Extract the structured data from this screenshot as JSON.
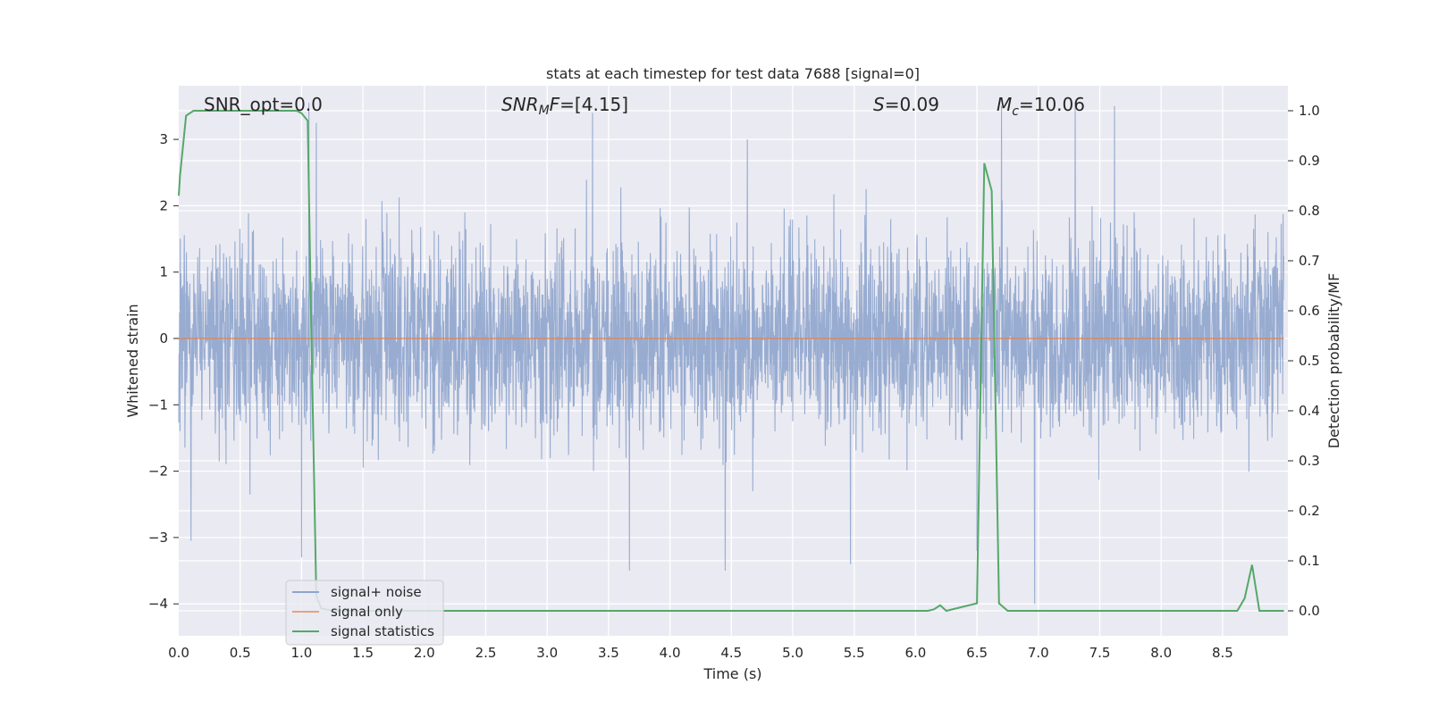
{
  "chart_data": {
    "type": "line",
    "title": "stats at each timestep for test data 7688 [signal=0]",
    "xlabel": "Time (s)",
    "ylabel_left": "Whitened strain",
    "ylabel_right": "Detection probability/MF",
    "xlim": [
      0.0,
      9.0
    ],
    "ylim_left": [
      -4.35,
      3.9
    ],
    "ylim_right": [
      -0.05,
      1.05
    ],
    "xticks": [
      "0.0",
      "0.5",
      "1.0",
      "1.5",
      "2.0",
      "2.5",
      "3.0",
      "3.5",
      "4.0",
      "4.5",
      "5.0",
      "5.5",
      "6.0",
      "6.5",
      "7.0",
      "7.5",
      "8.0",
      "8.5"
    ],
    "yticks_left": [
      "3",
      "2",
      "1",
      "0",
      "−1",
      "−2",
      "−3",
      "−4"
    ],
    "yticks_right": [
      "1.0",
      "0.9",
      "0.8",
      "0.7",
      "0.6",
      "0.5",
      "0.4",
      "0.3",
      "0.2",
      "0.1",
      "0.0"
    ],
    "grid": true,
    "legend_placement": "lower-left",
    "annotations": {
      "snr_opt": "SNR_opt=0.0",
      "snr_mf": "=[4.15]",
      "s_stat": "=0.09",
      "mc": "=10.06"
    },
    "series": [
      {
        "name": "signal+ noise",
        "axis": "left",
        "color": "#8fa5cd",
        "description_values": "Gaussian whitened noise, approx. range -3.5 to 3.5",
        "extremes": [
          {
            "x": 1.06,
            "y": 3.55
          },
          {
            "x": 1.12,
            "y": 3.25
          },
          {
            "x": 3.37,
            "y": 3.4
          },
          {
            "x": 4.63,
            "y": 3.0
          },
          {
            "x": 6.7,
            "y": 3.5
          },
          {
            "x": 7.3,
            "y": 3.5
          },
          {
            "x": 7.62,
            "y": 3.5
          },
          {
            "x": 3.67,
            "y": -3.5
          },
          {
            "x": 4.45,
            "y": -3.5
          },
          {
            "x": 5.47,
            "y": -3.4
          },
          {
            "x": 6.97,
            "y": -4.0
          },
          {
            "x": 6.5,
            "y": -3.2
          },
          {
            "x": 0.1,
            "y": -3.05
          },
          {
            "x": 1.0,
            "y": -3.3
          }
        ]
      },
      {
        "name": "signal only",
        "axis": "left",
        "color": "#dd8452",
        "x": [
          0.0,
          9.0
        ],
        "y": [
          0.0,
          0.0
        ]
      },
      {
        "name": "signal statistics",
        "axis": "right",
        "color": "#55a868",
        "x": [
          0.0,
          0.01,
          0.06,
          0.12,
          0.25,
          0.5,
          0.75,
          0.96,
          1.0,
          1.05,
          1.08,
          1.12,
          1.16,
          1.25,
          6.1,
          6.15,
          6.2,
          6.25,
          6.5,
          6.56,
          6.62,
          6.68,
          6.75,
          6.82,
          8.62,
          8.68,
          8.74,
          8.8,
          8.9,
          9.0
        ],
        "y": [
          0.83,
          0.87,
          0.99,
          1.0,
          1.0,
          1.0,
          1.0,
          1.0,
          0.995,
          0.98,
          0.55,
          0.03,
          0.005,
          0.0,
          0.0,
          0.003,
          0.011,
          0.0,
          0.015,
          0.895,
          0.84,
          0.015,
          0.0,
          0.0,
          0.0,
          0.025,
          0.092,
          0.0,
          0.0,
          0.0
        ]
      }
    ]
  }
}
